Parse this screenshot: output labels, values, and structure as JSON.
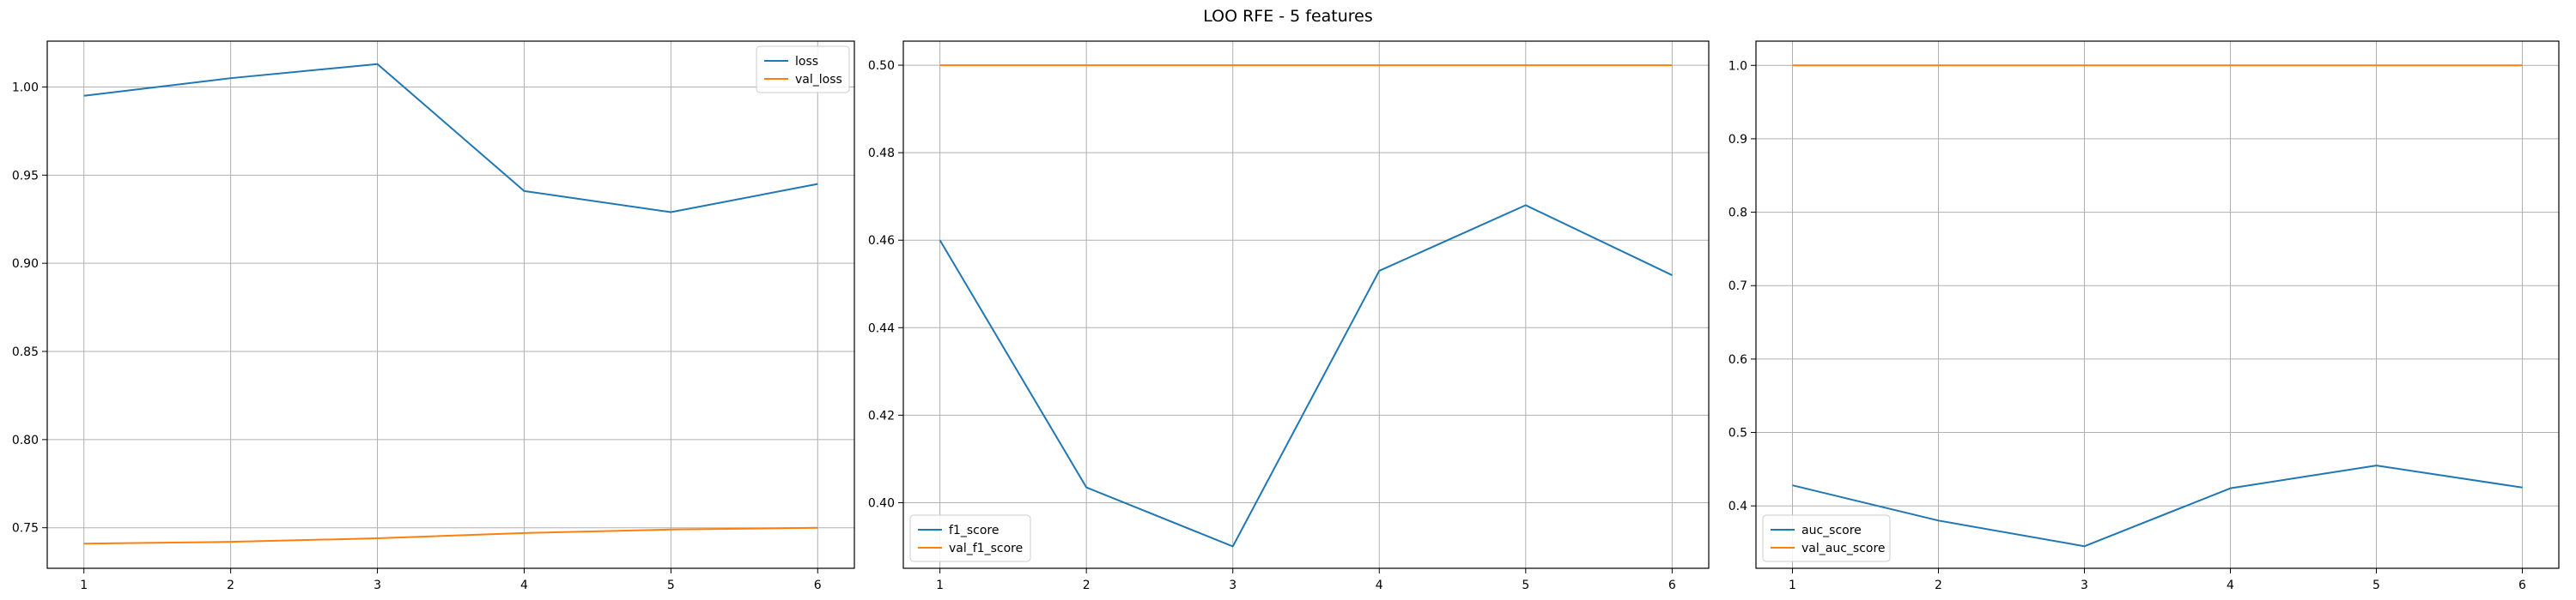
{
  "figure": {
    "title": "LOO RFE - 5 features"
  },
  "colors": {
    "series1": "#1f77b4",
    "series2": "#ff7f0e",
    "grid": "#b0b0b0"
  },
  "chart_data": [
    {
      "type": "line",
      "x": [
        1,
        2,
        3,
        4,
        5,
        6
      ],
      "xlim": [
        0.75,
        6.25
      ],
      "ylim": [
        0.727,
        1.026
      ],
      "xticks": [
        1,
        2,
        3,
        4,
        5,
        6
      ],
      "yticks": [
        0.75,
        0.8,
        0.85,
        0.9,
        0.95,
        1.0
      ],
      "ytick_decimals": 2,
      "grid": true,
      "legend": "upper right",
      "series": [
        {
          "name": "loss",
          "values": [
            0.995,
            1.005,
            1.013,
            0.941,
            0.929,
            0.945
          ]
        },
        {
          "name": "val_loss",
          "values": [
            0.741,
            0.742,
            0.744,
            0.747,
            0.749,
            0.75
          ]
        }
      ]
    },
    {
      "type": "line",
      "x": [
        1,
        2,
        3,
        4,
        5,
        6
      ],
      "xlim": [
        0.75,
        6.25
      ],
      "ylim": [
        0.385,
        0.5055
      ],
      "xticks": [
        1,
        2,
        3,
        4,
        5,
        6
      ],
      "yticks": [
        0.4,
        0.42,
        0.44,
        0.46,
        0.48,
        0.5
      ],
      "ytick_decimals": 2,
      "grid": true,
      "legend": "lower left",
      "series": [
        {
          "name": "f1_score",
          "values": [
            0.46,
            0.4035,
            0.39,
            0.453,
            0.468,
            0.452
          ]
        },
        {
          "name": "val_f1_score",
          "values": [
            0.5,
            0.5,
            0.5,
            0.5,
            0.5,
            0.5
          ]
        }
      ]
    },
    {
      "type": "line",
      "x": [
        1,
        2,
        3,
        4,
        5,
        6
      ],
      "xlim": [
        0.75,
        6.25
      ],
      "ylim": [
        0.315,
        1.033
      ],
      "xticks": [
        1,
        2,
        3,
        4,
        5,
        6
      ],
      "yticks": [
        0.4,
        0.5,
        0.6,
        0.7,
        0.8,
        0.9,
        1.0
      ],
      "ytick_decimals": 1,
      "grid": true,
      "legend": "lower left",
      "series": [
        {
          "name": "auc_score",
          "values": [
            0.428,
            0.38,
            0.345,
            0.424,
            0.455,
            0.425
          ]
        },
        {
          "name": "val_auc_score",
          "values": [
            1.0,
            1.0,
            1.0,
            1.0,
            1.0,
            1.0
          ]
        }
      ]
    }
  ]
}
